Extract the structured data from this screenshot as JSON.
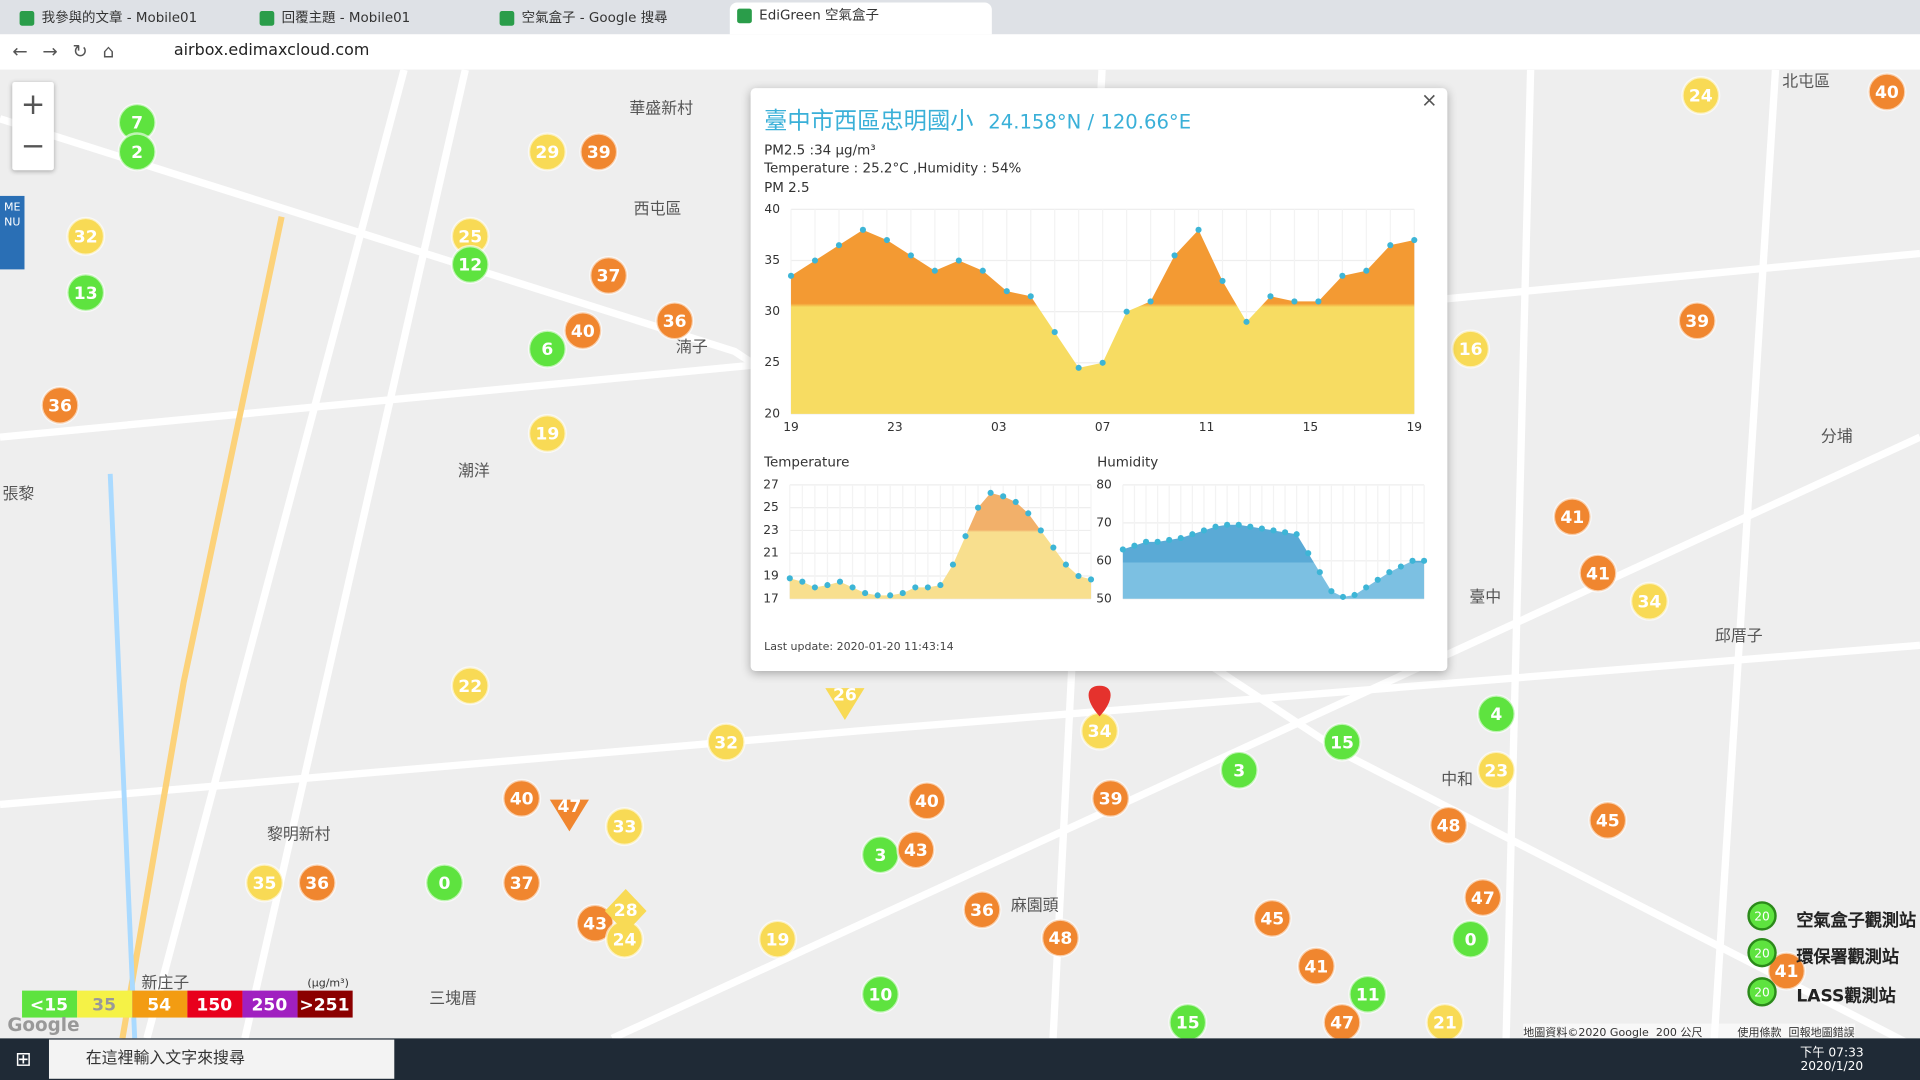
{
  "browser": {
    "tabs": [
      "我參與的文章 - Mobile01",
      "回覆主題 - Mobile01",
      "空氣盒子 - Google 搜尋",
      "EdiGreen 空氣盒子"
    ],
    "url": "airbox.edimaxcloud.com"
  },
  "map": {
    "menu": "MENU",
    "zoom_in": "+",
    "zoom_out": "−",
    "places": [
      "華盛新村",
      "西屯區",
      "潮洋",
      "黎明新村",
      "新庄子",
      "三塊厝",
      "麻園頭",
      "臺中",
      "邱厝子",
      "北屯區",
      "分埔",
      "張黎",
      "中和",
      "湳子"
    ],
    "markers": [
      7,
      2,
      32,
      13,
      36,
      29,
      39,
      25,
      12,
      37,
      36,
      40,
      6,
      19,
      24,
      40,
      39,
      16,
      41,
      41,
      34,
      22,
      32,
      34,
      4,
      15,
      3,
      23,
      40,
      33,
      40,
      39,
      3,
      43,
      48,
      45,
      35,
      36,
      0,
      37,
      43,
      24,
      36,
      45,
      47,
      0,
      19,
      48,
      41,
      11,
      10,
      15,
      47,
      21,
      41
    ],
    "station_markers": [
      47,
      26,
      28
    ],
    "legend": {
      "levels": [
        "<15",
        "35",
        "54",
        "150",
        "250",
        ">251"
      ],
      "unit": "(μg/m³)"
    },
    "station_legend": [
      "空氣盒子觀測站",
      "環保署觀測站",
      "LASS觀測站"
    ],
    "station_legend_value": "20",
    "footer": [
      "地圖資料©2020 Google",
      "200 公尺",
      "使用條款",
      "回報地圖錯誤"
    ],
    "google": "Google"
  },
  "popup": {
    "close": "×",
    "site": "臺中市西區忠明國小",
    "coords": "24.158°N / 120.66°E",
    "pm": "PM2.5 :34 μg/m³",
    "temp_hum": "Temperature : 25.2°C ,Humidity : 54%",
    "last_update": "Last update: 2020-01-20 11:43:14"
  },
  "chart_data": [
    {
      "type": "line",
      "title": "PM 2.5",
      "color": "#f5d75a",
      "values": [
        33.5,
        35,
        36.5,
        38,
        37,
        35.5,
        34,
        35,
        34,
        32,
        31.5,
        28,
        24.5,
        25,
        30,
        31,
        35.5,
        38,
        33,
        29,
        31.5,
        31,
        31,
        33.5,
        34,
        36.5,
        37
      ],
      "xticks": [
        "19",
        "23",
        "03",
        "07",
        "11",
        "15",
        "19"
      ],
      "ylim": [
        20,
        40
      ],
      "yticks": [
        20,
        25,
        30,
        35,
        40
      ],
      "grid": true
    },
    {
      "type": "line",
      "title": "Temperature",
      "color": "#f3b36a",
      "values": [
        18.8,
        18.5,
        18,
        18.2,
        18.5,
        18,
        17.5,
        17.3,
        17.3,
        17.5,
        18,
        18,
        18.2,
        20,
        22.5,
        25,
        26.3,
        26,
        25.5,
        24.5,
        23,
        21.5,
        20,
        19,
        18.7
      ],
      "ylim": [
        17,
        27
      ],
      "yticks": [
        17,
        19,
        21,
        23,
        25,
        27
      ],
      "grid": true
    },
    {
      "type": "line",
      "title": "Humidity",
      "color": "#62b2dc",
      "values": [
        63,
        64,
        65,
        65,
        65.5,
        66,
        67,
        68,
        69,
        69.5,
        69.5,
        69,
        68.5,
        68,
        67.5,
        67,
        62,
        57,
        52,
        50.5,
        51,
        53,
        55,
        57,
        58.5,
        60,
        60
      ],
      "ylim": [
        50,
        80
      ],
      "yticks": [
        50,
        60,
        70,
        80
      ],
      "grid": true
    }
  ],
  "taskbar": {
    "search": "在這裡輸入文字來搜尋",
    "time": "下午 07:33",
    "date": "2020/1/20"
  }
}
